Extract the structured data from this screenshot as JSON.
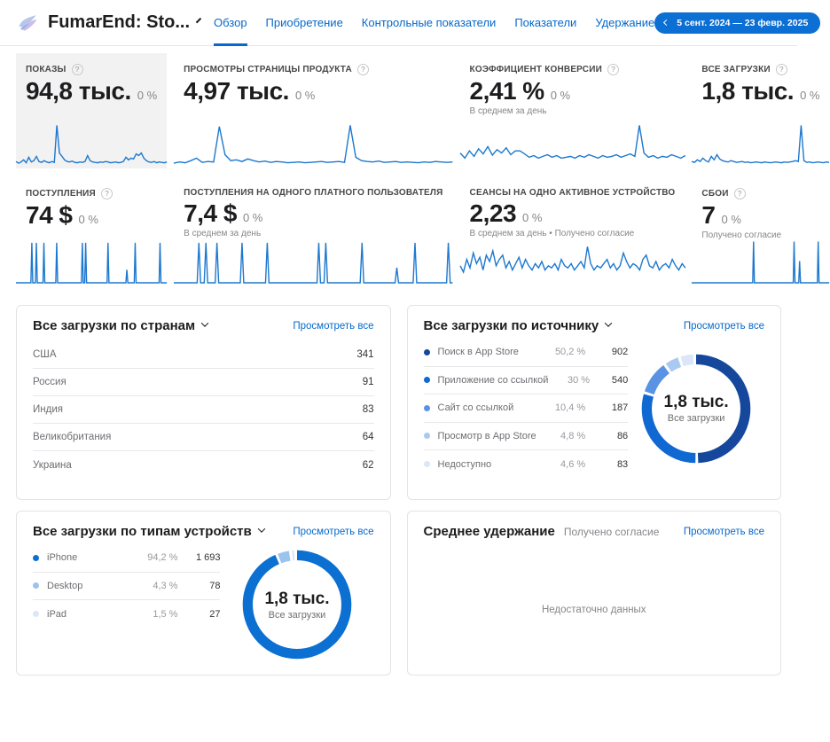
{
  "icons": {
    "help": "?"
  },
  "colors": {
    "accent": "#0669cb",
    "spark": "#1d78cf",
    "pill": "#0b6fd4"
  },
  "header": {
    "app_title": "FumarEnd: Sto...",
    "date_range": "5 сент. 2024 — 23 февр. 2025",
    "nav": [
      {
        "name": "tab-overview",
        "label": "Обзор",
        "active": true
      },
      {
        "name": "tab-acquisition",
        "label": "Приобретение",
        "active": false
      },
      {
        "name": "tab-benchmarks",
        "label": "Контрольные показатели",
        "active": false
      },
      {
        "name": "tab-metrics",
        "label": "Показатели",
        "active": false
      },
      {
        "name": "tab-retention",
        "label": "Удержание",
        "active": false
      }
    ]
  },
  "metric_cards": [
    {
      "id": "impressions",
      "label": "ПОКАЗЫ",
      "help": true,
      "value": "94,8 тыс.",
      "delta": "0 %",
      "note": "",
      "selected": true,
      "chart": {
        "type": "line",
        "points": [
          10,
          6,
          9,
          14,
          7,
          20,
          9,
          12,
          22,
          10,
          8,
          12,
          9,
          7,
          10,
          8,
          95,
          30,
          22,
          14,
          10,
          9,
          11,
          8,
          7,
          9,
          8,
          10,
          24,
          12,
          9,
          8,
          7,
          9,
          8,
          10,
          9,
          7,
          8,
          9,
          7,
          8,
          10,
          20,
          14,
          18,
          16,
          28,
          24,
          30,
          18,
          12,
          9,
          8,
          10,
          7,
          9,
          8,
          7,
          9
        ]
      }
    },
    {
      "id": "product-page-views",
      "label": "ПРОСМОТРЫ СТРАНИЦЫ ПРОДУКТА",
      "help": true,
      "value": "4,97 тыс.",
      "delta": "0 %",
      "note": "",
      "selected": false,
      "chart": {
        "type": "line",
        "points": [
          6,
          9,
          7,
          12,
          18,
          8,
          10,
          9,
          92,
          26,
          12,
          14,
          10,
          16,
          12,
          9,
          11,
          8,
          10,
          9,
          7,
          8,
          9,
          7,
          8,
          9,
          10,
          8,
          9,
          10,
          8,
          95,
          20,
          12,
          10,
          9,
          11,
          8,
          9,
          10,
          8,
          9,
          8,
          7,
          9,
          8,
          10,
          9,
          8,
          9
        ]
      }
    },
    {
      "id": "conversion-rate",
      "label": "КОЭФФИЦИЕНТ КОНВЕРСИИ",
      "help": true,
      "value": "2,41 %",
      "delta": "0 %",
      "note": "В среднем за день",
      "selected": false,
      "chart": {
        "type": "line",
        "points": [
          30,
          18,
          35,
          22,
          40,
          28,
          45,
          25,
          38,
          30,
          42,
          26,
          35,
          35,
          28,
          20,
          24,
          18,
          22,
          26,
          20,
          24,
          18,
          20,
          22,
          18,
          24,
          20,
          26,
          22,
          18,
          24,
          20,
          22,
          26,
          20,
          24,
          28,
          22,
          95,
          30,
          20,
          24,
          18,
          22,
          20,
          26,
          22,
          18,
          24
        ]
      }
    },
    {
      "id": "total-downloads",
      "label": "ВСЕ ЗАГРУЗКИ",
      "help": true,
      "value": "1,8 тыс.",
      "delta": "0 %",
      "note": "",
      "selected": false,
      "chart": {
        "type": "line",
        "points": [
          10,
          8,
          14,
          10,
          18,
          12,
          9,
          22,
          14,
          26,
          16,
          12,
          10,
          9,
          12,
          10,
          8,
          9,
          10,
          8,
          9,
          7,
          8,
          9,
          8,
          7,
          9,
          8,
          7,
          8,
          9,
          8,
          7,
          9,
          8,
          9,
          10,
          12,
          10,
          95,
          12,
          8,
          9,
          7,
          8,
          9,
          8,
          7,
          9,
          8
        ]
      }
    },
    {
      "id": "proceeds",
      "label": "ПОСТУПЛЕНИЯ",
      "help": true,
      "value": "74 $",
      "delta": "0 %",
      "note": "",
      "selected": false,
      "chart": {
        "type": "spikes",
        "spikes": [
          [
            0.105,
            0.92
          ],
          [
            0.135,
            0.92
          ],
          [
            0.185,
            0.92
          ],
          [
            0.27,
            0.92
          ],
          [
            0.44,
            0.92
          ],
          [
            0.462,
            0.92
          ],
          [
            0.61,
            0.92
          ],
          [
            0.735,
            0.3
          ],
          [
            0.79,
            0.92
          ],
          [
            0.955,
            0.92
          ]
        ]
      }
    },
    {
      "id": "proceeds-per-paying-user",
      "label": "ПОСТУПЛЕНИЯ НА ОДНОГО ПЛАТНОГО ПОЛЬЗОВАТЕЛЯ",
      "help": false,
      "value": "7,4 $",
      "delta": "0 %",
      "note": "В среднем за день",
      "selected": false,
      "chart": {
        "type": "spikes",
        "spikes": [
          [
            0.09,
            0.92
          ],
          [
            0.115,
            0.92
          ],
          [
            0.155,
            0.92
          ],
          [
            0.245,
            0.92
          ],
          [
            0.335,
            0.92
          ],
          [
            0.52,
            0.92
          ],
          [
            0.545,
            0.92
          ],
          [
            0.675,
            0.92
          ],
          [
            0.8,
            0.35
          ],
          [
            0.865,
            0.92
          ],
          [
            0.985,
            0.92
          ]
        ]
      }
    },
    {
      "id": "sessions-per-active-device",
      "label": "СЕАНСЫ НА ОДНО АКТИВНОЕ УСТРОЙСТВО",
      "help": false,
      "value": "2,23",
      "delta": "0 %",
      "note": "В среднем за день • Получено согласие",
      "selected": false,
      "chart": {
        "type": "line",
        "points": [
          40,
          25,
          55,
          35,
          70,
          45,
          60,
          30,
          65,
          50,
          75,
          40,
          55,
          65,
          35,
          50,
          30,
          45,
          60,
          35,
          55,
          40,
          30,
          45,
          35,
          50,
          30,
          40,
          35,
          45,
          30,
          55,
          40,
          35,
          45,
          30,
          40,
          50,
          35,
          85,
          45,
          30,
          40,
          35,
          45,
          55,
          35,
          45,
          30,
          40,
          70,
          50,
          35,
          45,
          40,
          30,
          55,
          65,
          40,
          35,
          50,
          30,
          40,
          45,
          35,
          55,
          40,
          30,
          45,
          35
        ]
      }
    },
    {
      "id": "crashes",
      "label": "СБОИ",
      "help": true,
      "value": "7",
      "delta": "0 %",
      "note": "Получено согласие",
      "selected": false,
      "chart": {
        "type": "spikes",
        "spikes": [
          [
            0.45,
            0.95
          ],
          [
            0.745,
            0.95
          ],
          [
            0.785,
            0.5
          ],
          [
            0.92,
            0.95
          ]
        ]
      }
    }
  ],
  "panels": {
    "countries": {
      "title": "Все загрузки по странам",
      "view_all": "Просмотреть все",
      "rows": [
        {
          "name": "США",
          "value": "341"
        },
        {
          "name": "Россия",
          "value": "91"
        },
        {
          "name": "Индия",
          "value": "83"
        },
        {
          "name": "Великобритания",
          "value": "64"
        },
        {
          "name": "Украина",
          "value": "62"
        }
      ]
    },
    "sources": {
      "title": "Все загрузки по источнику",
      "view_all": "Просмотреть все",
      "rows": [
        {
          "name": "Поиск в App Store",
          "percent": "50,2 %",
          "value": "902",
          "color": "#15489c"
        },
        {
          "name": "Приложение со ссылкой",
          "percent": "30 %",
          "value": "540",
          "color": "#1068d2"
        },
        {
          "name": "Сайт со ссылкой",
          "percent": "10,4 %",
          "value": "187",
          "color": "#5a93e4"
        },
        {
          "name": "Просмотр в App Store",
          "percent": "4,8 %",
          "value": "86",
          "color": "#a9c9f0"
        },
        {
          "name": "Недоступно",
          "percent": "4,6 %",
          "value": "83",
          "color": "#dbe7f8"
        }
      ],
      "donut": {
        "center_value": "1,8 тыс.",
        "center_label": "Все загрузки",
        "segments": [
          {
            "pct": 50.2,
            "color": "#15489c"
          },
          {
            "pct": 30,
            "color": "#1068d2"
          },
          {
            "pct": 10.4,
            "color": "#5a93e4"
          },
          {
            "pct": 4.8,
            "color": "#a9c9f0"
          },
          {
            "pct": 4.6,
            "color": "#dbe7f8"
          }
        ]
      }
    },
    "devices": {
      "title": "Все загрузки по типам устройств",
      "view_all": "Просмотреть все",
      "rows": [
        {
          "name": "iPhone",
          "percent": "94,2 %",
          "value": "1 693",
          "color": "#0b70d2"
        },
        {
          "name": "Desktop",
          "percent": "4,3 %",
          "value": "78",
          "color": "#9cc3ee"
        },
        {
          "name": "iPad",
          "percent": "1,5 %",
          "value": "27",
          "color": "#dbe7f8"
        }
      ],
      "donut": {
        "center_value": "1,8 тыс.",
        "center_label": "Все загрузки",
        "segments": [
          {
            "pct": 94.2,
            "color": "#0b70d2"
          },
          {
            "pct": 4.3,
            "color": "#9cc3ee"
          },
          {
            "pct": 1.5,
            "color": "#dbe7f8"
          }
        ]
      }
    },
    "retention": {
      "title": "Среднее удержание",
      "subtitle": "Получено согласие",
      "view_all": "Просмотреть все",
      "empty": "Недостаточно данных"
    }
  }
}
